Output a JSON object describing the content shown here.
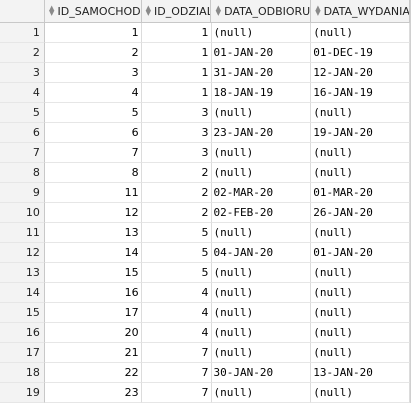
{
  "columns": [
    "",
    "ID_SAMOCHOD",
    "ID_ODZIAL",
    "DATA_ODBIORU",
    "DATA_WYDANIA"
  ],
  "rows": [
    [
      "1",
      "1",
      "1",
      "(null)",
      "(null)"
    ],
    [
      "2",
      "2",
      "1",
      "01-JAN-20",
      "01-DEC-19"
    ],
    [
      "3",
      "3",
      "1",
      "31-JAN-20",
      "12-JAN-20"
    ],
    [
      "4",
      "4",
      "1",
      "18-JAN-19",
      "16-JAN-19"
    ],
    [
      "5",
      "5",
      "3",
      "(null)",
      "(null)"
    ],
    [
      "6",
      "6",
      "3",
      "23-JAN-20",
      "19-JAN-20"
    ],
    [
      "7",
      "7",
      "3",
      "(null)",
      "(null)"
    ],
    [
      "8",
      "8",
      "2",
      "(null)",
      "(null)"
    ],
    [
      "9",
      "11",
      "2",
      "02-MAR-20",
      "01-MAR-20"
    ],
    [
      "10",
      "12",
      "2",
      "02-FEB-20",
      "26-JAN-20"
    ],
    [
      "11",
      "13",
      "5",
      "(null)",
      "(null)"
    ],
    [
      "12",
      "14",
      "5",
      "04-JAN-20",
      "01-JAN-20"
    ],
    [
      "13",
      "15",
      "5",
      "(null)",
      "(null)"
    ],
    [
      "14",
      "16",
      "4",
      "(null)",
      "(null)"
    ],
    [
      "15",
      "17",
      "4",
      "(null)",
      "(null)"
    ],
    [
      "16",
      "20",
      "4",
      "(null)",
      "(null)"
    ],
    [
      "17",
      "21",
      "7",
      "(null)",
      "(null)"
    ],
    [
      "18",
      "22",
      "7",
      "30-JAN-20",
      "13-JAN-20"
    ],
    [
      "19",
      "23",
      "7",
      "(null)",
      "(null)"
    ]
  ]
}
